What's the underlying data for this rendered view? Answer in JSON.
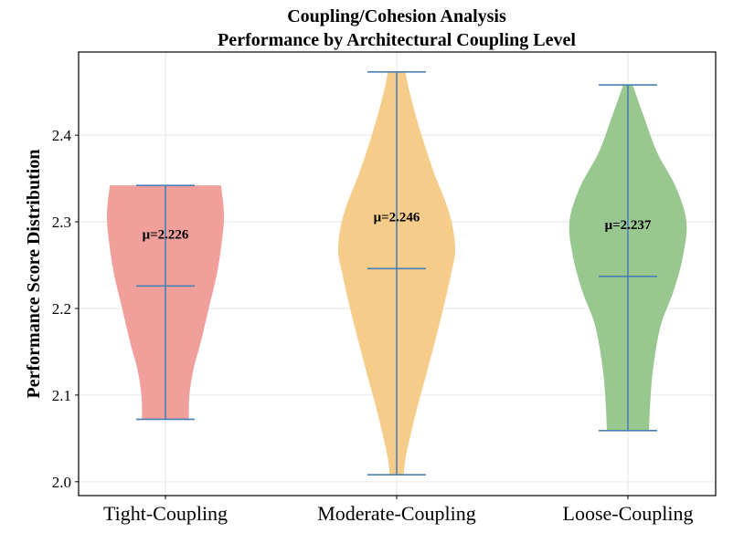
{
  "chart_data": {
    "type": "violin",
    "title": "Coupling/Cohesion Analysis",
    "subtitle": "Performance by Architectural Coupling Level",
    "xlabel": "",
    "ylabel": "Performance Score Distribution",
    "ylim": [
      1.984,
      2.496
    ],
    "yticks": [
      "2.0",
      "2.1",
      "2.2",
      "2.3",
      "2.4"
    ],
    "grid": true,
    "line_color": "#4a7fb5",
    "categories": [
      "Tight-Coupling",
      "Moderate-Coupling",
      "Loose-Coupling"
    ],
    "series": [
      {
        "category": "Tight-Coupling",
        "color": "#f09a96",
        "min": 2.072,
        "max": 2.342,
        "mean": 2.226,
        "mean_label": "μ=2.226",
        "density": [
          [
            2.072,
            0.4
          ],
          [
            2.1,
            0.41
          ],
          [
            2.13,
            0.48
          ],
          [
            2.16,
            0.6
          ],
          [
            2.2,
            0.74
          ],
          [
            2.24,
            0.88
          ],
          [
            2.28,
            0.97
          ],
          [
            2.31,
            1.0
          ],
          [
            2.342,
            0.95
          ]
        ]
      },
      {
        "category": "Moderate-Coupling",
        "color": "#f5c985",
        "min": 2.008,
        "max": 2.473,
        "mean": 2.246,
        "mean_label": "μ=2.246",
        "density": [
          [
            2.008,
            0.12
          ],
          [
            2.03,
            0.16
          ],
          [
            2.08,
            0.33
          ],
          [
            2.13,
            0.53
          ],
          [
            2.19,
            0.76
          ],
          [
            2.24,
            0.93
          ],
          [
            2.27,
            1.0
          ],
          [
            2.31,
            0.9
          ],
          [
            2.36,
            0.62
          ],
          [
            2.41,
            0.38
          ],
          [
            2.45,
            0.22
          ],
          [
            2.473,
            0.15
          ]
        ]
      },
      {
        "category": "Loose-Coupling",
        "color": "#93c48a",
        "min": 2.059,
        "max": 2.458,
        "mean": 2.237,
        "mean_label": "μ=2.237",
        "density": [
          [
            2.059,
            0.36
          ],
          [
            2.09,
            0.38
          ],
          [
            2.13,
            0.43
          ],
          [
            2.18,
            0.56
          ],
          [
            2.22,
            0.78
          ],
          [
            2.26,
            0.94
          ],
          [
            2.3,
            1.0
          ],
          [
            2.34,
            0.82
          ],
          [
            2.38,
            0.5
          ],
          [
            2.42,
            0.28
          ],
          [
            2.458,
            0.08
          ]
        ]
      }
    ]
  }
}
